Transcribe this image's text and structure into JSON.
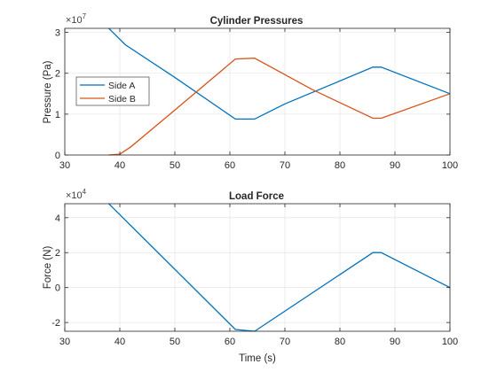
{
  "chart_data": [
    {
      "type": "line",
      "title": "Cylinder Pressures",
      "xlabel": "",
      "ylabel": "Pressure (Pa)",
      "ylabel_multiplier": "×10",
      "ylabel_exponent": "7",
      "xlim": [
        30,
        100
      ],
      "ylim": [
        0,
        3.1
      ],
      "xticks": [
        "30",
        "40",
        "50",
        "60",
        "70",
        "80",
        "90",
        "100"
      ],
      "yticks": [
        "0",
        "1",
        "2",
        "3"
      ],
      "grid": true,
      "legend_position": "left",
      "series": [
        {
          "name": "Side A",
          "color": "#0072BD",
          "points": [
            [
              38,
              3.1
            ],
            [
              41,
              2.7
            ],
            [
              50,
              1.9
            ],
            [
              61,
              0.88
            ],
            [
              64.5,
              0.88
            ],
            [
              70,
              1.25
            ],
            [
              86,
              2.15
            ],
            [
              87.5,
              2.15
            ],
            [
              100,
              1.5
            ]
          ]
        },
        {
          "name": "Side B",
          "color": "#D95319",
          "points": [
            [
              38,
              0
            ],
            [
              40,
              0.02
            ],
            [
              42,
              0.2
            ],
            [
              50,
              1.1
            ],
            [
              61,
              2.35
            ],
            [
              64.5,
              2.37
            ],
            [
              75,
              1.6
            ],
            [
              86,
              0.9
            ],
            [
              87.5,
              0.9
            ],
            [
              100,
              1.5
            ]
          ]
        }
      ]
    },
    {
      "type": "line",
      "title": "Load Force",
      "xlabel": "Time (s)",
      "ylabel": "Force (N)",
      "ylabel_multiplier": "×10",
      "ylabel_exponent": "4",
      "xlim": [
        30,
        100
      ],
      "ylim": [
        -2.5,
        4.8
      ],
      "xticks": [
        "30",
        "40",
        "50",
        "60",
        "70",
        "80",
        "90",
        "100"
      ],
      "yticks": [
        "-2",
        "0",
        "2",
        "4"
      ],
      "grid": true,
      "series": [
        {
          "color": "#0072BD",
          "points": [
            [
              38,
              4.8
            ],
            [
              61,
              -2.4
            ],
            [
              64.5,
              -2.5
            ],
            [
              86,
              2.0
            ],
            [
              87.5,
              2.0
            ],
            [
              100,
              0
            ]
          ]
        }
      ]
    }
  ]
}
